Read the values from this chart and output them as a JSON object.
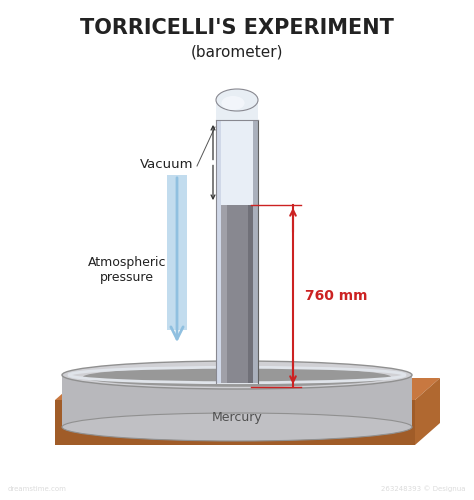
{
  "title": "TORRICELLI'S EXPERIMENT",
  "subtitle": "(barometer)",
  "label_vacuum": "Vacuum",
  "label_atm": "Atmospheric\npressure",
  "label_mercury": "Mercury",
  "label_760": "760 mm",
  "background_color": "#ffffff",
  "title_fontsize": 15,
  "subtitle_fontsize": 11,
  "table_top_color": "#c87840",
  "table_front_color": "#a05c28",
  "table_right_color": "#b06830",
  "bowl_side_color": "#b8b8bc",
  "bowl_rim_top_color": "#d0d0d4",
  "bowl_rim_edge": "#909090",
  "bowl_inner_mercury": "#989898",
  "bowl_outer_side": "#c0c0c4",
  "tube_mercury_color": "#888890",
  "tube_mercury_left": "#a0a0a8",
  "tube_mercury_right": "#707078",
  "tube_vacuum_color": "#e8eef6",
  "tube_glass_left": "#d0d8e8",
  "tube_glass_right": "#aab0bc",
  "tube_glass_edge": "#888890",
  "tube_cap_color": "#e8eef4",
  "tube_cap_highlight": "#f5f8fc",
  "tube_cap_shadow": "#c0c8d4",
  "arrow_atm_color": "#90c0e0",
  "arrow_atm_dark": "#6090b0",
  "arrow_dim_color": "#cc2222",
  "text_color": "#222222",
  "watermark_color": "#cccccc"
}
